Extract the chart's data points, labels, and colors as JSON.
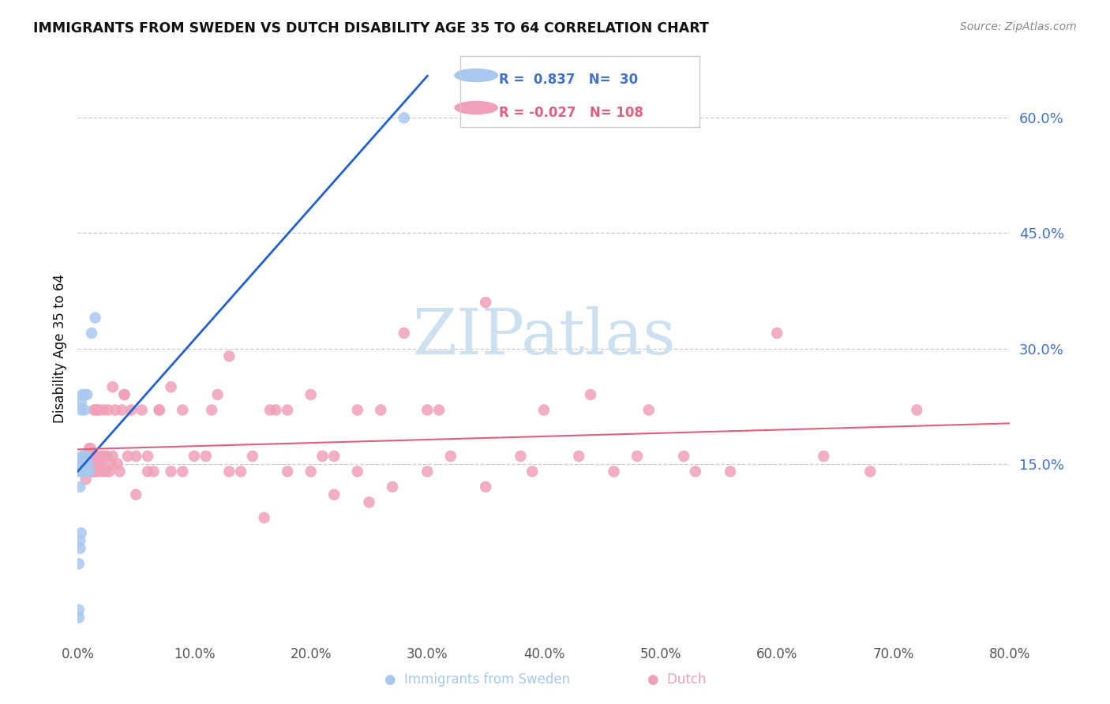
{
  "title": "IMMIGRANTS FROM SWEDEN VS DUTCH DISABILITY AGE 35 TO 64 CORRELATION CHART",
  "source": "Source: ZipAtlas.com",
  "ylabel": "Disability Age 35 to 64",
  "xlim": [
    0.0,
    0.8
  ],
  "ylim": [
    -0.08,
    0.68
  ],
  "yticks_right": [
    0.15,
    0.3,
    0.45,
    0.6
  ],
  "xticks": [
    0.0,
    0.1,
    0.2,
    0.3,
    0.4,
    0.5,
    0.6,
    0.7,
    0.8
  ],
  "sweden_R": 0.837,
  "sweden_N": 30,
  "dutch_R": -0.027,
  "dutch_N": 108,
  "sweden_scatter_color": "#a8c8f0",
  "dutch_scatter_color": "#f0a0b8",
  "sweden_line_color": "#2060d0",
  "dutch_line_color": "#e06080",
  "legend_R_color_sweden": "#4472c4",
  "legend_R_color_dutch": "#e06080",
  "watermark_text": "ZIPatlas",
  "watermark_color": "#cce0f0",
  "grid_color": "#cccccc",
  "title_color": "#111111",
  "source_color": "#888888",
  "xlabel_color": "#111111",
  "ylabel_color": "#111111",
  "tick_color_right": "#4472c4",
  "tick_color_x": "#555555",
  "sweden_x": [
    0.001,
    0.001,
    0.001,
    0.002,
    0.002,
    0.002,
    0.002,
    0.002,
    0.003,
    0.003,
    0.003,
    0.003,
    0.003,
    0.004,
    0.004,
    0.004,
    0.004,
    0.005,
    0.005,
    0.005,
    0.006,
    0.006,
    0.007,
    0.007,
    0.008,
    0.009,
    0.01,
    0.012,
    0.015,
    0.28
  ],
  "sweden_y": [
    -0.04,
    -0.05,
    0.02,
    0.04,
    0.05,
    0.12,
    0.14,
    0.15,
    0.06,
    0.14,
    0.15,
    0.22,
    0.23,
    0.14,
    0.15,
    0.16,
    0.24,
    0.14,
    0.15,
    0.16,
    0.22,
    0.24,
    0.14,
    0.16,
    0.24,
    0.15,
    0.14,
    0.32,
    0.34,
    0.6
  ],
  "dutch_x": [
    0.004,
    0.005,
    0.005,
    0.006,
    0.006,
    0.007,
    0.007,
    0.008,
    0.008,
    0.009,
    0.009,
    0.01,
    0.01,
    0.011,
    0.011,
    0.011,
    0.012,
    0.012,
    0.012,
    0.013,
    0.013,
    0.014,
    0.014,
    0.015,
    0.015,
    0.016,
    0.016,
    0.017,
    0.018,
    0.018,
    0.019,
    0.02,
    0.021,
    0.022,
    0.023,
    0.024,
    0.025,
    0.026,
    0.027,
    0.028,
    0.03,
    0.032,
    0.034,
    0.036,
    0.038,
    0.04,
    0.043,
    0.046,
    0.05,
    0.055,
    0.06,
    0.065,
    0.07,
    0.08,
    0.09,
    0.1,
    0.115,
    0.13,
    0.15,
    0.165,
    0.18,
    0.2,
    0.22,
    0.24,
    0.26,
    0.28,
    0.3,
    0.32,
    0.35,
    0.38,
    0.4,
    0.43,
    0.46,
    0.49,
    0.52,
    0.56,
    0.6,
    0.64,
    0.68,
    0.72,
    0.03,
    0.06,
    0.09,
    0.13,
    0.17,
    0.21,
    0.25,
    0.3,
    0.04,
    0.08,
    0.12,
    0.16,
    0.2,
    0.24,
    0.02,
    0.05,
    0.07,
    0.11,
    0.14,
    0.18,
    0.22,
    0.27,
    0.31,
    0.35,
    0.39,
    0.44,
    0.48,
    0.53
  ],
  "dutch_y": [
    0.14,
    0.15,
    0.16,
    0.14,
    0.15,
    0.13,
    0.15,
    0.14,
    0.16,
    0.14,
    0.15,
    0.16,
    0.17,
    0.15,
    0.16,
    0.17,
    0.14,
    0.15,
    0.16,
    0.14,
    0.15,
    0.16,
    0.22,
    0.14,
    0.16,
    0.22,
    0.15,
    0.14,
    0.15,
    0.22,
    0.15,
    0.14,
    0.16,
    0.22,
    0.16,
    0.14,
    0.16,
    0.22,
    0.14,
    0.15,
    0.16,
    0.22,
    0.15,
    0.14,
    0.22,
    0.24,
    0.16,
    0.22,
    0.16,
    0.22,
    0.16,
    0.14,
    0.22,
    0.25,
    0.14,
    0.16,
    0.22,
    0.29,
    0.16,
    0.22,
    0.14,
    0.24,
    0.16,
    0.14,
    0.22,
    0.32,
    0.14,
    0.16,
    0.36,
    0.16,
    0.22,
    0.16,
    0.14,
    0.22,
    0.16,
    0.14,
    0.32,
    0.16,
    0.14,
    0.22,
    0.25,
    0.14,
    0.22,
    0.14,
    0.22,
    0.16,
    0.1,
    0.22,
    0.24,
    0.14,
    0.24,
    0.08,
    0.14,
    0.22,
    0.16,
    0.11,
    0.22,
    0.16,
    0.14,
    0.22,
    0.11,
    0.12,
    0.22,
    0.12,
    0.14,
    0.24,
    0.16,
    0.14
  ]
}
